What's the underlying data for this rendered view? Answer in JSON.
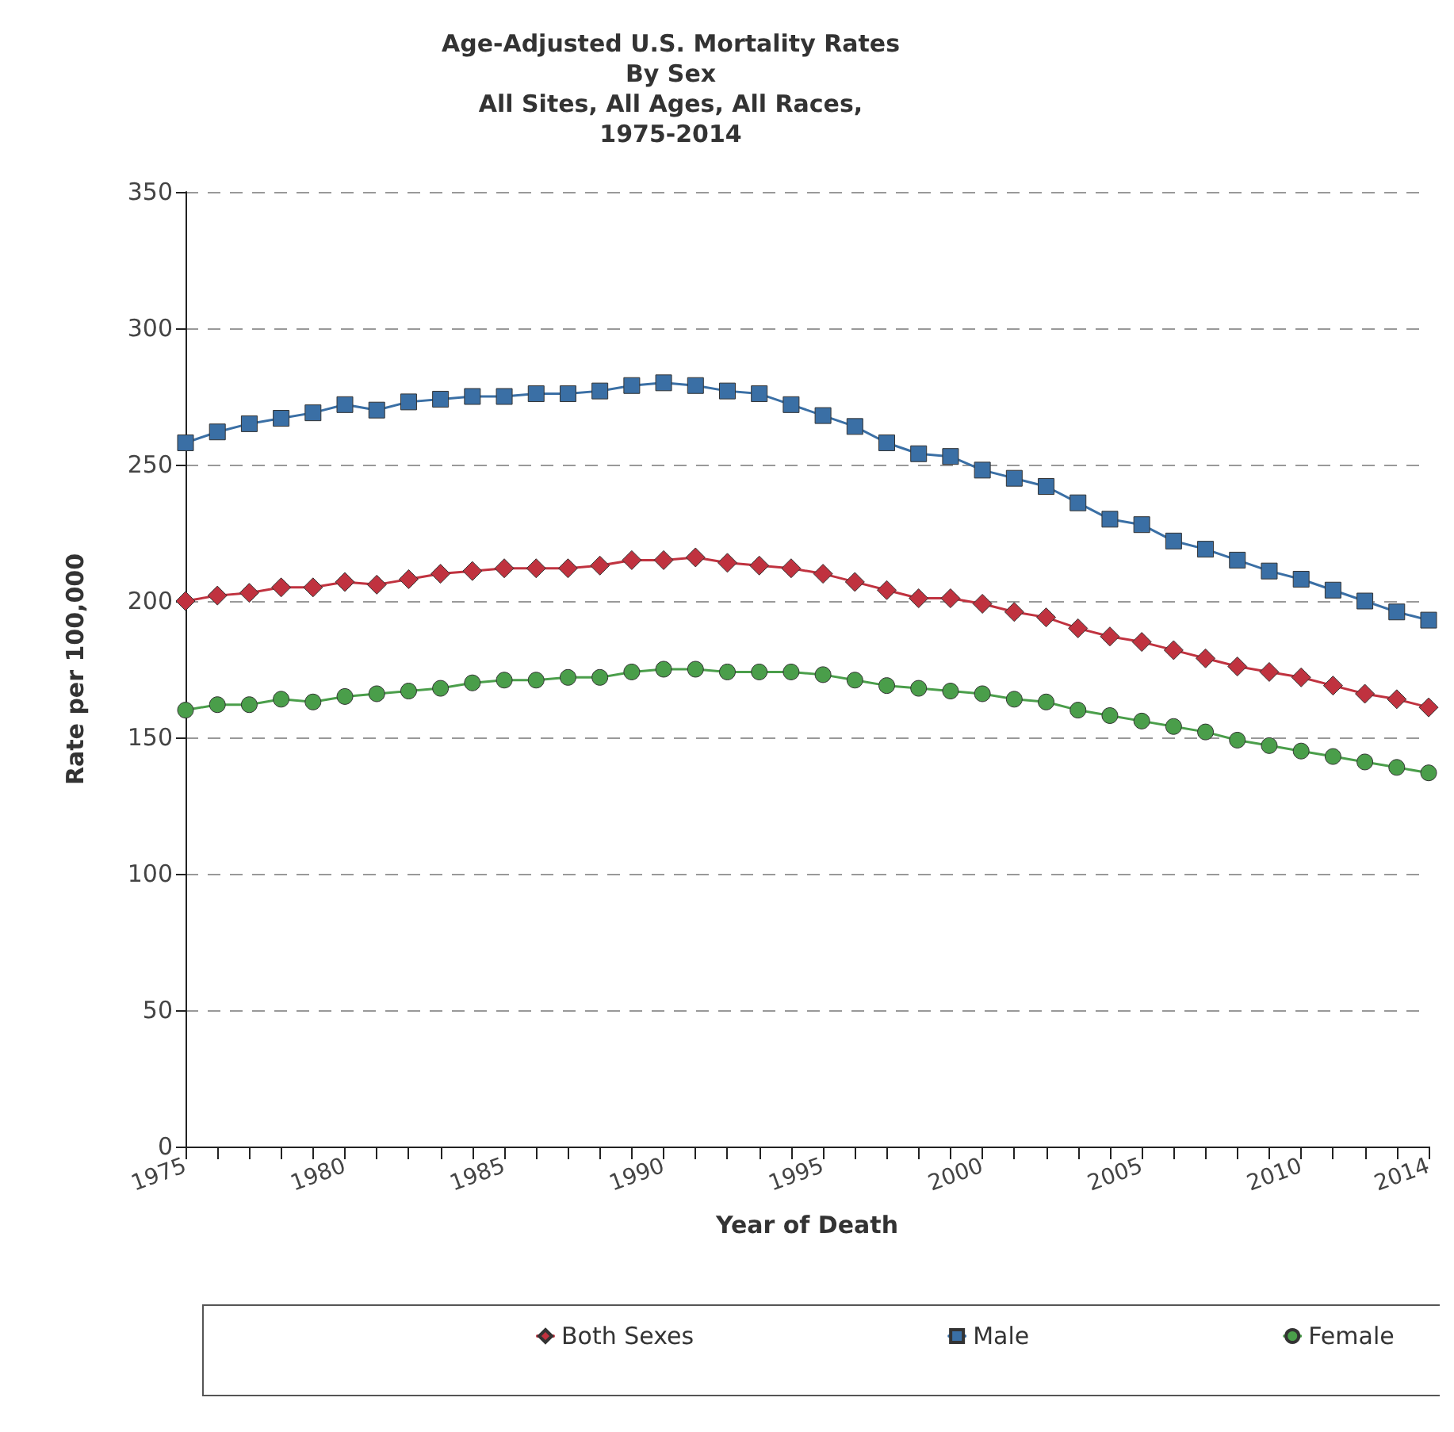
{
  "chart_data": {
    "type": "line",
    "title": "Age-Adjusted U.S. Mortality Rates\nBy Sex\nAll Sites, All Ages, All Races,\n1975-2014",
    "xlabel": "Year of Death",
    "ylabel": "Rate per 100,000",
    "x": [
      1975,
      1976,
      1977,
      1978,
      1979,
      1980,
      1981,
      1982,
      1983,
      1984,
      1985,
      1986,
      1987,
      1988,
      1989,
      1990,
      1991,
      1992,
      1993,
      1994,
      1995,
      1996,
      1997,
      1998,
      1999,
      2000,
      2001,
      2002,
      2003,
      2004,
      2005,
      2006,
      2007,
      2008,
      2009,
      2010,
      2011,
      2012,
      2013,
      2014
    ],
    "series": [
      {
        "name": "Both Sexes",
        "color": "#c0323f",
        "marker": "diamond",
        "values": [
          200,
          202,
          203,
          205,
          205,
          207,
          206,
          208,
          210,
          211,
          212,
          212,
          212,
          213,
          215,
          215,
          216,
          214,
          213,
          212,
          210,
          207,
          204,
          201,
          201,
          199,
          196,
          194,
          190,
          187,
          185,
          182,
          179,
          176,
          174,
          172,
          169,
          166,
          164,
          161
        ]
      },
      {
        "name": "Male",
        "color": "#3a6fa5",
        "marker": "square",
        "values": [
          258,
          262,
          265,
          267,
          269,
          272,
          270,
          273,
          274,
          275,
          275,
          276,
          276,
          277,
          279,
          280,
          279,
          277,
          276,
          272,
          268,
          264,
          258,
          254,
          253,
          248,
          245,
          242,
          236,
          230,
          228,
          222,
          219,
          215,
          211,
          208,
          204,
          200,
          196,
          193
        ]
      },
      {
        "name": "Female",
        "color": "#4a9e4a",
        "marker": "circle",
        "values": [
          160,
          162,
          162,
          164,
          163,
          165,
          166,
          167,
          168,
          170,
          171,
          171,
          172,
          172,
          174,
          175,
          175,
          174,
          174,
          174,
          173,
          171,
          169,
          168,
          167,
          166,
          164,
          163,
          160,
          158,
          156,
          154,
          152,
          149,
          147,
          145,
          143,
          141,
          139,
          137
        ]
      }
    ],
    "xlim": [
      1975,
      2014
    ],
    "xticks": [
      1975,
      {
        "value": 1976,
        "label": null
      },
      {
        "value": 1977,
        "label": null
      },
      {
        "value": 1978,
        "label": null
      },
      {
        "value": 1979,
        "label": null
      },
      1980,
      {
        "value": 1981,
        "label": null
      },
      {
        "value": 1982,
        "label": null
      },
      {
        "value": 1983,
        "label": null
      },
      {
        "value": 1984,
        "label": null
      },
      1985,
      {
        "value": 1986,
        "label": null
      },
      {
        "value": 1987,
        "label": null
      },
      {
        "value": 1988,
        "label": null
      },
      {
        "value": 1989,
        "label": null
      },
      1990,
      {
        "value": 1991,
        "label": null
      },
      {
        "value": 1992,
        "label": null
      },
      {
        "value": 1993,
        "label": null
      },
      {
        "value": 1994,
        "label": null
      },
      1995,
      {
        "value": 1996,
        "label": null
      },
      {
        "value": 1997,
        "label": null
      },
      {
        "value": 1998,
        "label": null
      },
      {
        "value": 1999,
        "label": null
      },
      2000,
      {
        "value": 2001,
        "label": null
      },
      {
        "value": 2002,
        "label": null
      },
      {
        "value": 2003,
        "label": null
      },
      {
        "value": 2004,
        "label": null
      },
      2005,
      {
        "value": 2006,
        "label": null
      },
      {
        "value": 2007,
        "label": null
      },
      {
        "value": 2008,
        "label": null
      },
      {
        "value": 2009,
        "label": null
      },
      2010,
      {
        "value": 2011,
        "label": null
      },
      {
        "value": 2012,
        "label": null
      },
      {
        "value": 2013,
        "label": null
      },
      2014
    ],
    "ylim": [
      0,
      350
    ],
    "yticks": [
      0,
      50,
      100,
      150,
      200,
      250,
      300,
      350
    ],
    "grid": "y",
    "legend": "bottom",
    "line_style": "solid"
  }
}
